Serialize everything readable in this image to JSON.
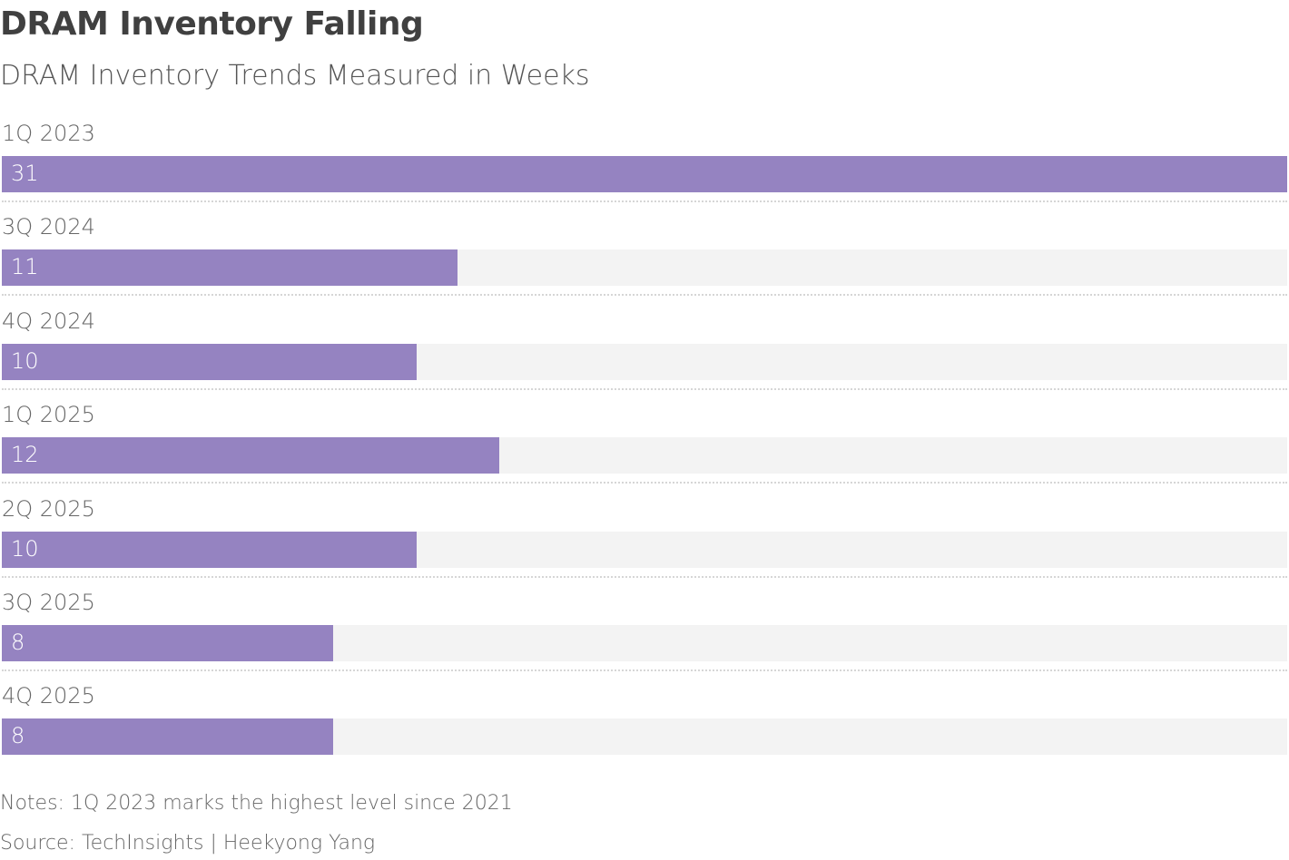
{
  "chart_data": {
    "type": "bar",
    "orientation": "horizontal",
    "title": "DRAM Inventory Falling",
    "subtitle": "DRAM Inventory Trends Measured in Weeks",
    "categories": [
      "1Q 2023",
      "3Q 2024",
      "4Q 2024",
      "1Q 2025",
      "2Q 2025",
      "3Q 2025",
      "4Q 2025"
    ],
    "values": [
      31,
      11,
      10,
      12,
      10,
      8,
      8
    ],
    "xlim": [
      0,
      31
    ],
    "bar_color": "#9583c1",
    "track_color": "#f3f3f3",
    "grid": false,
    "notes": "Notes: 1Q 2023 marks the highest level since 2021",
    "source": "Source: TechInsights | Heekyong Yang"
  }
}
